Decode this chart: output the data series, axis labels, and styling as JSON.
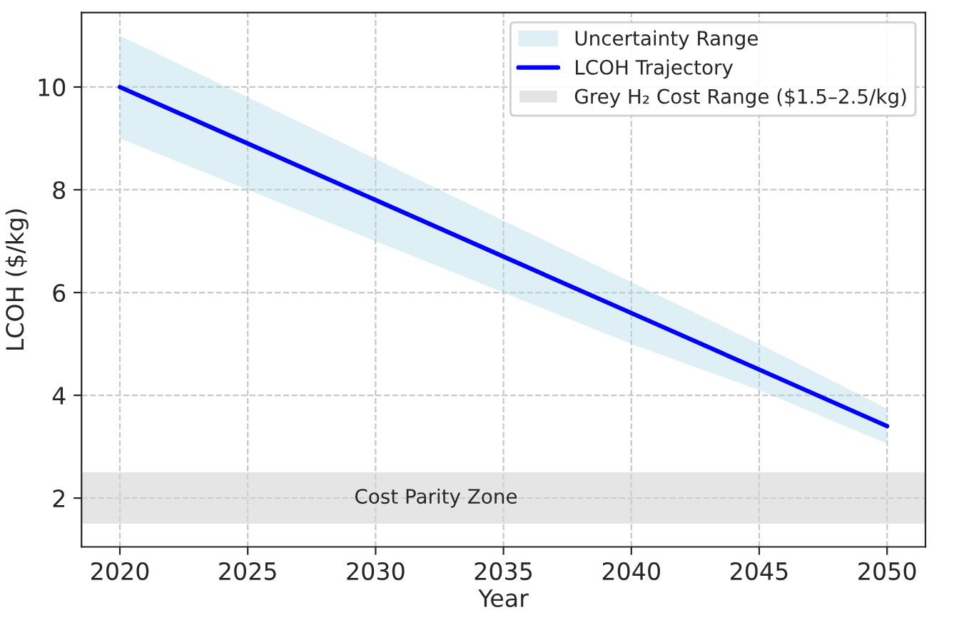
{
  "chart_data": {
    "type": "line",
    "xlabel": "Year",
    "ylabel": "LCOH ($/kg)",
    "x": [
      2020,
      2025,
      2030,
      2035,
      2040,
      2045,
      2050
    ],
    "series": [
      {
        "name": "LCOH Trajectory",
        "color": "#0000ff",
        "values": [
          10.0,
          8.9,
          7.8,
          6.7,
          5.6,
          4.5,
          3.4
        ],
        "lower": [
          9.0,
          8.0,
          7.0,
          6.0,
          5.0,
          4.1,
          3.06
        ],
        "upper": [
          11.0,
          9.8,
          8.6,
          7.4,
          6.2,
          5.0,
          3.74
        ]
      }
    ],
    "bands": [
      {
        "axis": "y",
        "from": 1.5,
        "to": 2.5,
        "label": "Grey H₂ Cost Range ($1.5–2.5/kg)",
        "color": "#d3d3d3"
      }
    ],
    "annotations": [
      "Uncertainty Range",
      "Cost Parity Zone"
    ],
    "xlim": [
      2018.5,
      2051.5
    ],
    "ylim": [
      1.05,
      11.45
    ],
    "xticks": [
      2020,
      2025,
      2030,
      2035,
      2040,
      2045,
      2050
    ],
    "yticks": [
      2,
      4,
      6,
      8,
      10
    ],
    "grid": true,
    "legend": "top right",
    "line_style": "solid",
    "marker": "none"
  }
}
